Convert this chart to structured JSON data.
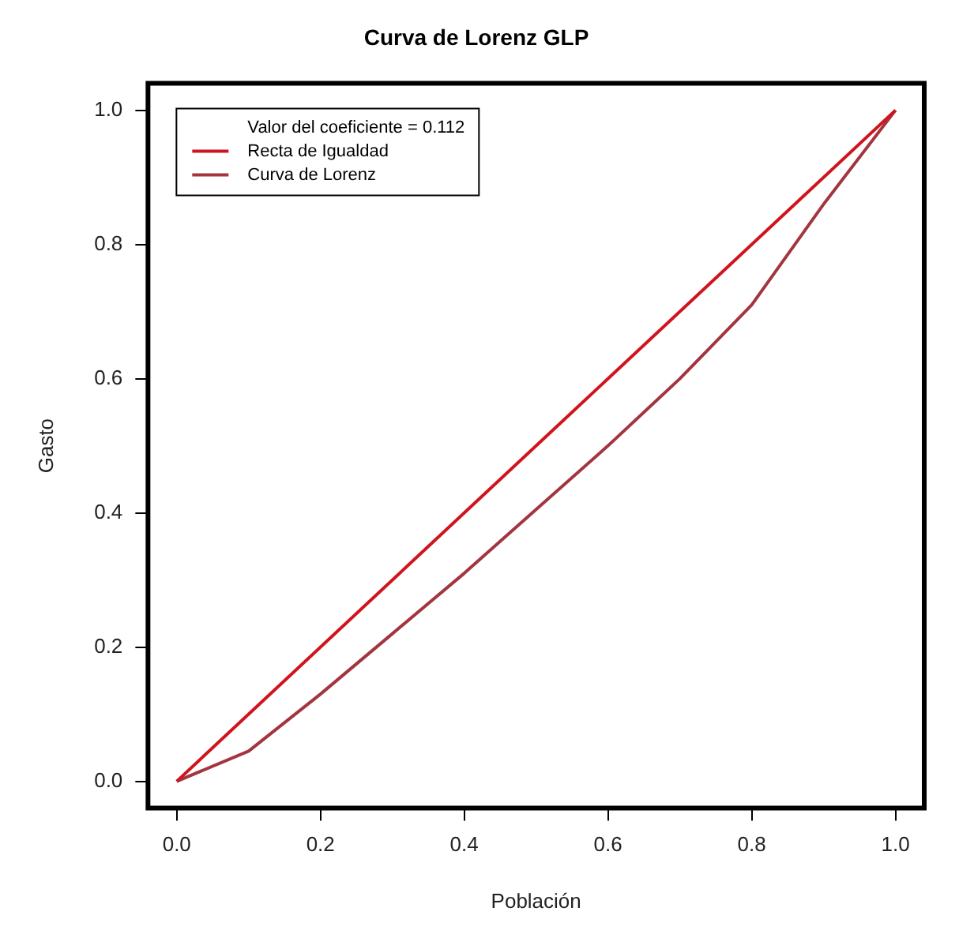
{
  "chart_data": {
    "type": "line",
    "title": "Curva de Lorenz GLP",
    "xlabel": "Población",
    "ylabel": "Gasto",
    "x": [
      0,
      0.1,
      0.2,
      0.3,
      0.4,
      0.5,
      0.6,
      0.7,
      0.8,
      0.9,
      1
    ],
    "series": [
      {
        "name": "Recta de Igualdad",
        "color": "#d0141e",
        "x": [
          0,
          1
        ],
        "values": [
          0,
          1
        ]
      },
      {
        "name": "Curva de Lorenz",
        "color": "#a3353f",
        "values": [
          0,
          0.045,
          0.13,
          0.22,
          0.31,
          0.405,
          0.5,
          0.6,
          0.71,
          0.86,
          1
        ]
      }
    ],
    "annotations": [
      "Valor del coeficiente = 0.112"
    ],
    "xlim": [
      -0.04,
      1.04
    ],
    "ylim": [
      -0.04,
      1.04
    ],
    "xticks": [
      {
        "value": 0,
        "label": "0.0"
      },
      0.2,
      0.4,
      0.6,
      0.8,
      {
        "value": 1,
        "label": "1.0"
      }
    ],
    "yticks": [
      {
        "value": 0,
        "label": "0.0"
      },
      0.2,
      0.4,
      0.6,
      0.8,
      {
        "value": 1,
        "label": "1.0"
      }
    ],
    "grid": false,
    "legend": "top left",
    "marker": "none",
    "line_style": "solid"
  }
}
